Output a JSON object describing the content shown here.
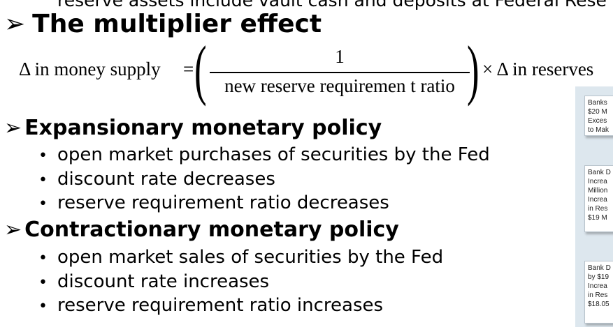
{
  "top_partial_text": "reserve assets include vault cash and deposits at Federal Rese",
  "title": {
    "arrow": "➢",
    "text": "The multiplier effect"
  },
  "formula": {
    "lhs": "Δ in money supply",
    "equals": "=",
    "numerator": "1",
    "denominator": "new reserve requiremen t ratio",
    "rhs": "× Δ in reserves",
    "paren_left": "(",
    "paren_right": ")"
  },
  "sections": [
    {
      "arrow": "➢",
      "heading": "Expansionary monetary policy",
      "items": [
        "open market purchases of securities by the Fed",
        "discount rate decreases",
        "reserve requirement ratio decreases"
      ]
    },
    {
      "arrow": "➢",
      "heading": "Contractionary monetary policy",
      "items": [
        "open market sales of securities by the Fed",
        "discount rate increases",
        "reserve requirement ratio increases"
      ]
    }
  ],
  "bullet_glyph": "•",
  "diagram": {
    "boxes": [
      {
        "lines": [
          "Banks",
          "$20 M",
          "Exces",
          "to Mak"
        ]
      },
      {
        "lines": [
          "Bank D",
          "Increa",
          "Million",
          "Increa",
          "in Res",
          "$19 M"
        ]
      },
      {
        "lines": [
          "Bank D",
          "by $19",
          "Increa",
          "in Res",
          "$18.05"
        ]
      }
    ]
  }
}
